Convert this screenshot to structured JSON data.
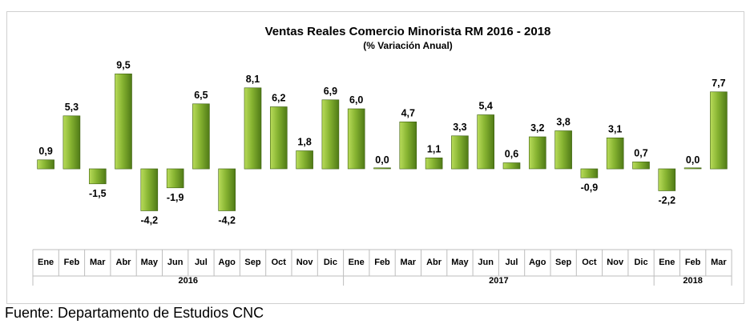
{
  "chart_data": {
    "type": "bar",
    "title": "Ventas Reales Comercio Minorista RM 2016 - 2018",
    "subtitle": "(% Variación Anual)",
    "categories": [
      "Ene",
      "Feb",
      "Mar",
      "Abr",
      "May",
      "Jun",
      "Jul",
      "Ago",
      "Sep",
      "Oct",
      "Nov",
      "Dic",
      "Ene",
      "Feb",
      "Mar",
      "Abr",
      "May",
      "Jun",
      "Jul",
      "Ago",
      "Sep",
      "Oct",
      "Nov",
      "Dic",
      "Ene",
      "Feb",
      "Mar"
    ],
    "values": [
      0.9,
      5.3,
      -1.5,
      9.5,
      -4.2,
      -1.9,
      6.5,
      -4.2,
      8.1,
      6.2,
      1.8,
      6.9,
      6.0,
      0.0,
      4.7,
      1.1,
      3.3,
      5.4,
      0.6,
      3.2,
      3.8,
      -0.9,
      3.1,
      0.7,
      -2.2,
      0.0,
      7.7
    ],
    "value_labels": [
      "0,9",
      "5,3",
      "-1,5",
      "9,5",
      "-4,2",
      "-1,9",
      "6,5",
      "-4,2",
      "8,1",
      "6,2",
      "1,8",
      "6,9",
      "6,0",
      "0,0",
      "4,7",
      "1,1",
      "3,3",
      "5,4",
      "0,6",
      "3,2",
      "3,8",
      "-0,9",
      "3,1",
      "0,7",
      "-2,2",
      "0,0",
      "7,7"
    ],
    "groups": [
      {
        "label": "2016",
        "start": 0,
        "count": 12
      },
      {
        "label": "2017",
        "start": 12,
        "count": 12
      },
      {
        "label": "2018",
        "start": 24,
        "count": 3
      }
    ],
    "ylim": [
      -6.5,
      10.5
    ],
    "grid": false,
    "bar_color_light": "#b9dc5a",
    "bar_color_dark": "#4f7a16"
  },
  "footer": {
    "source": "Fuente: Departamento de Estudios CNC"
  }
}
